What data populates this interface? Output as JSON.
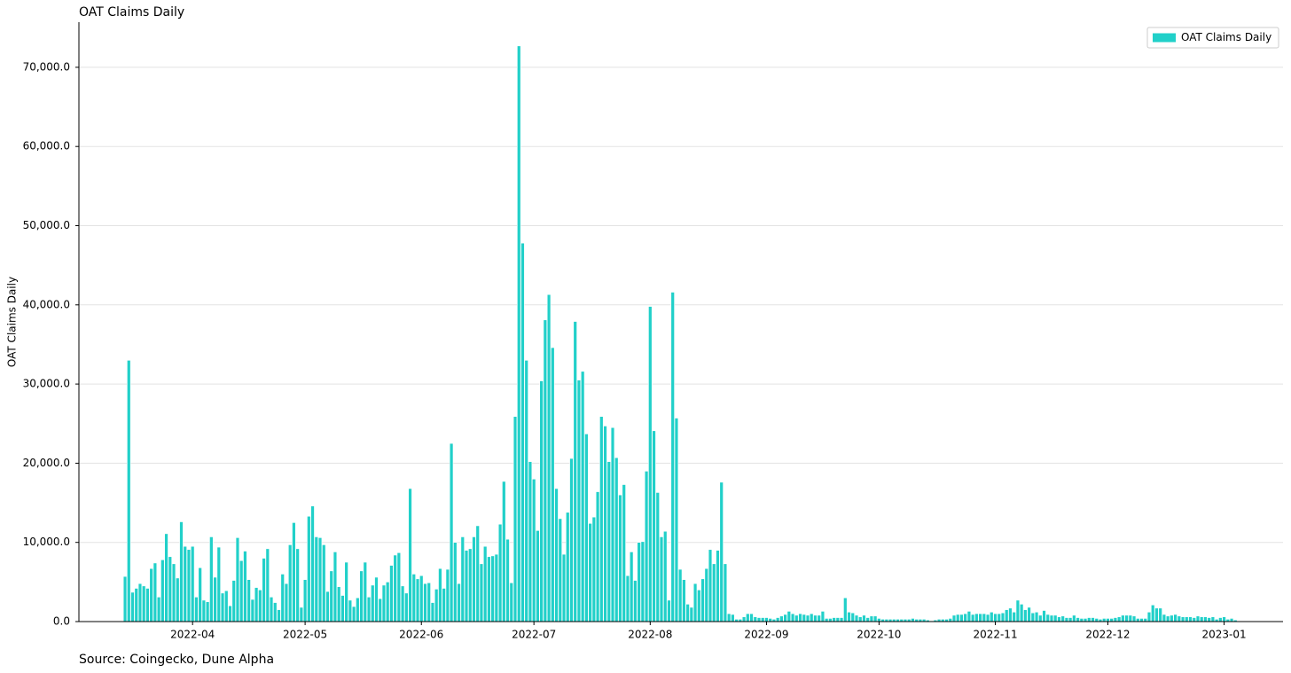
{
  "chart_data": {
    "type": "bar",
    "title": "OAT Claims Daily",
    "y_label": "OAT Claims Daily",
    "source": "Source: Coingecko, Dune Alpha",
    "series": [
      {
        "name": "OAT Claims Daily",
        "color": "#21d0c9",
        "values": [
          5700,
          33000,
          3700,
          4200,
          4800,
          4500,
          4200,
          6700,
          7400,
          3100,
          7800,
          11100,
          8200,
          7300,
          5500,
          12600,
          9500,
          9100,
          9500,
          3100,
          6800,
          2700,
          2500,
          10700,
          5600,
          9400,
          3600,
          3900,
          2000,
          5200,
          10600,
          7700,
          8900,
          5300,
          2800,
          4300,
          4000,
          8000,
          9200,
          3100,
          2400,
          1500,
          6000,
          4800,
          9700,
          12500,
          9200,
          1800,
          5300,
          13300,
          14600,
          10700,
          10600,
          9700,
          3800,
          6400,
          8800,
          4400,
          3300,
          7500,
          2700,
          1900,
          3000,
          6400,
          7500,
          3100,
          4600,
          5600,
          2900,
          4600,
          5000,
          7100,
          8400,
          8700,
          4500,
          3600,
          16800,
          6000,
          5400,
          5800,
          4800,
          4900,
          2400,
          4100,
          6700,
          4200,
          6600,
          22500,
          10000,
          4800,
          10700,
          9000,
          9200,
          10700,
          12100,
          7300,
          9500,
          8200,
          8300,
          8500,
          12300,
          17700,
          10400,
          4900,
          25900,
          72700,
          47800,
          33000,
          20200,
          18000,
          11500,
          30400,
          38100,
          41300,
          34600,
          16800,
          13000,
          8500,
          13800,
          20600,
          37900,
          30500,
          31600,
          23700,
          12400,
          13200,
          16400,
          25900,
          24700,
          20200,
          24500,
          20700,
          16000,
          17300,
          5800,
          8800,
          5200,
          10000,
          10100,
          19000,
          39800,
          24100,
          16300,
          10700,
          11400,
          2700,
          41600,
          25700,
          6600,
          5300,
          2200,
          1800,
          4800,
          4000,
          5400,
          6700,
          9100,
          7300,
          9000,
          17600,
          7300,
          1000,
          900,
          300,
          300,
          600,
          1000,
          1000,
          600,
          500,
          500,
          500,
          400,
          300,
          500,
          700,
          900,
          1300,
          1000,
          800,
          1000,
          900,
          800,
          1000,
          800,
          800,
          1300,
          400,
          400,
          500,
          500,
          500,
          3000,
          1200,
          1100,
          800,
          600,
          800,
          500,
          700,
          700,
          400,
          300,
          300,
          300,
          300,
          300,
          300,
          300,
          300,
          400,
          300,
          300,
          300,
          200,
          100,
          200,
          300,
          300,
          300,
          400,
          800,
          900,
          900,
          1000,
          1300,
          900,
          1000,
          1000,
          1000,
          900,
          1200,
          1000,
          1000,
          1100,
          1500,
          1700,
          1200,
          2700,
          2200,
          1500,
          1800,
          1100,
          1200,
          800,
          1400,
          900,
          800,
          800,
          600,
          700,
          500,
          500,
          800,
          500,
          400,
          400,
          500,
          500,
          400,
          300,
          400,
          400,
          400,
          500,
          600,
          800,
          800,
          800,
          700,
          400,
          400,
          400,
          1200,
          2100,
          1700,
          1700,
          900,
          700,
          800,
          900,
          700,
          600,
          600,
          600,
          500,
          700,
          600,
          600,
          500,
          600,
          300,
          500,
          600,
          300,
          400,
          200
        ]
      }
    ],
    "xlim": [
      -12.3,
      308.7
    ],
    "xticks": [
      {
        "value": 18,
        "label": "2022-04"
      },
      {
        "value": 48,
        "label": "2022-05"
      },
      {
        "value": 79,
        "label": "2022-06"
      },
      {
        "value": 109,
        "label": "2022-07"
      },
      {
        "value": 140,
        "label": "2022-08"
      },
      {
        "value": 171,
        "label": "2022-09"
      },
      {
        "value": 201,
        "label": "2022-10"
      },
      {
        "value": 232,
        "label": "2022-11"
      },
      {
        "value": 262,
        "label": "2022-12"
      },
      {
        "value": 293,
        "label": "2023-01"
      }
    ],
    "ylim": [
      0,
      75700
    ],
    "yticks": [
      {
        "value": 0,
        "label": "0.0"
      },
      {
        "value": 10000,
        "label": "10,000.0"
      },
      {
        "value": 20000,
        "label": "20,000.0"
      },
      {
        "value": 30000,
        "label": "30,000.0"
      },
      {
        "value": 40000,
        "label": "40,000.0"
      },
      {
        "value": 50000,
        "label": "50,000.0"
      },
      {
        "value": 60000,
        "label": "60,000.0"
      },
      {
        "value": 70000,
        "label": "70,000.0"
      }
    ],
    "grid": true,
    "legend": "upper-right"
  }
}
